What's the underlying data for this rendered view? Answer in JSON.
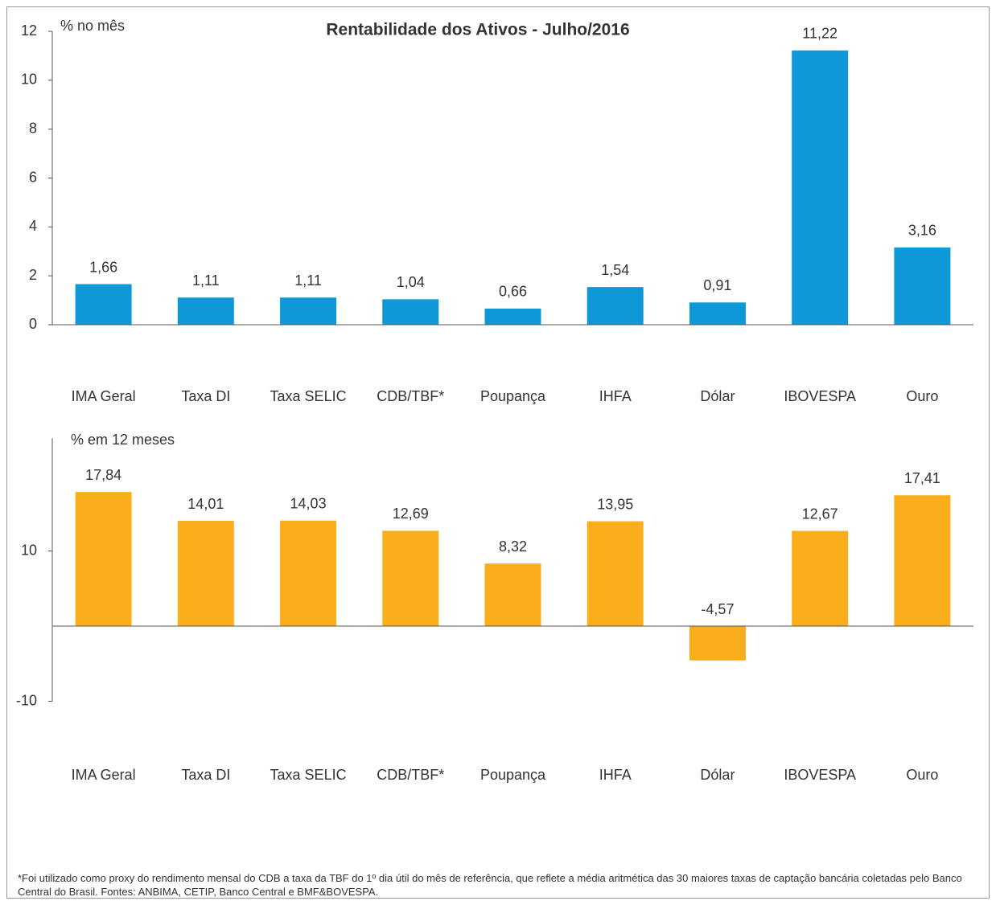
{
  "title": "Rentabilidade dos Ativos - Julho/2016",
  "footnote": "*Foi utilizado como proxy do rendimento mensal do CDB a taxa da TBF do 1º dia útil do mês de referência, que reflete a média aritmética das 30 maiores taxas de captação bancária coletadas pelo Banco Central do Brasil. Fontes: ANBIMA, CETIP, Banco Central e BMF&BOVESPA.",
  "chart_data": [
    {
      "type": "bar",
      "y_label": "% no mês",
      "categories": [
        "IMA Geral",
        "Taxa DI",
        "Taxa SELIC",
        "CDB/TBF*",
        "Poupança",
        "IHFA",
        "Dólar",
        "IBOVESPA",
        "Ouro"
      ],
      "values": [
        1.66,
        1.11,
        1.11,
        1.04,
        0.66,
        1.54,
        0.91,
        11.22,
        3.16
      ],
      "value_labels": [
        "1,66",
        "1,11",
        "1,11",
        "1,04",
        "0,66",
        "1,54",
        "0,91",
        "11,22",
        "3,16"
      ],
      "color": "#0f98d8",
      "ylim": [
        0,
        12
      ],
      "yticks": [
        0,
        2,
        4,
        6,
        8,
        10,
        12
      ]
    },
    {
      "type": "bar",
      "y_label": "% em 12 meses",
      "categories": [
        "IMA Geral",
        "Taxa DI",
        "Taxa SELIC",
        "CDB/TBF*",
        "Poupança",
        "IHFA",
        "Dólar",
        "IBOVESPA",
        "Ouro"
      ],
      "values": [
        17.84,
        14.01,
        14.03,
        12.69,
        8.32,
        13.95,
        -4.57,
        12.67,
        17.41
      ],
      "value_labels": [
        "17,84",
        "14,01",
        "14,03",
        "12,69",
        "8,32",
        "13,95",
        "-4,57",
        "12,67",
        "17,41"
      ],
      "color": "#fbae1b",
      "ylim": [
        -10,
        25
      ],
      "yticks": [
        -10,
        10
      ]
    }
  ]
}
